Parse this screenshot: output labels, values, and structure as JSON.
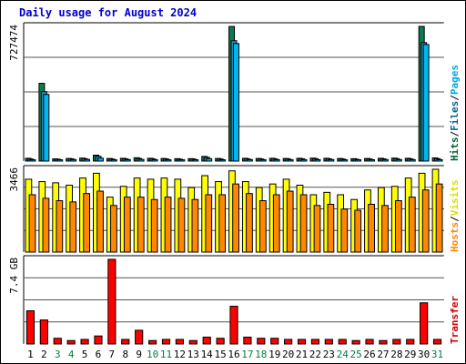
{
  "chart_data": {
    "type": "bar",
    "title": "Daily usage for August 2024",
    "categories": [
      "1",
      "2",
      "3",
      "4",
      "5",
      "6",
      "7",
      "8",
      "9",
      "10",
      "11",
      "12",
      "13",
      "14",
      "15",
      "16",
      "17",
      "18",
      "19",
      "20",
      "21",
      "22",
      "23",
      "24",
      "25",
      "26",
      "27",
      "28",
      "29",
      "30",
      "31"
    ],
    "weekend_days": [
      "3",
      "4",
      "10",
      "11",
      "17",
      "18",
      "24",
      "25",
      "31"
    ],
    "panels": [
      {
        "id": "top",
        "max_label": "727474",
        "max_value": 727474,
        "right_labels": [
          {
            "text": "Hits",
            "color": "#006633"
          },
          {
            "text": "/",
            "color": "#000000"
          },
          {
            "text": "Files",
            "color": "#006699"
          },
          {
            "text": "/",
            "color": "#000000"
          },
          {
            "text": "Pages",
            "color": "#00aadd"
          }
        ],
        "series": [
          {
            "name": "Hits",
            "color": "#0d7a52",
            "values": [
              15000,
              420000,
              12000,
              14000,
              16000,
              32000,
              14000,
              15000,
              18000,
              15000,
              14000,
              13000,
              13000,
              25000,
              14000,
              727000,
              15000,
              14000,
              15000,
              14000,
              15000,
              16000,
              15000,
              14000,
              13000,
              14000,
              15000,
              16000,
              15000,
              727474,
              17000
            ]
          },
          {
            "name": "Files",
            "color": "#2a8ec8",
            "values": [
              11000,
              375000,
              10000,
              12000,
              13000,
              26000,
              11000,
              12000,
              14000,
              12000,
              11000,
              10000,
              11000,
              20000,
              11000,
              650000,
              12000,
              11000,
              12000,
              11000,
              12000,
              13000,
              12000,
              11000,
              10000,
              11000,
              12000,
              13000,
              12000,
              640000,
              13000
            ]
          },
          {
            "name": "Pages",
            "color": "#00b7f0",
            "values": [
              7000,
              360000,
              7000,
              8000,
              9000,
              16000,
              7000,
              8000,
              9000,
              8000,
              7000,
              7000,
              7000,
              13000,
              7000,
              635000,
              8000,
              7000,
              8000,
              7000,
              8000,
              8000,
              8000,
              7000,
              7000,
              7000,
              8000,
              8000,
              8000,
              630000,
              8000
            ]
          }
        ]
      },
      {
        "id": "middle",
        "max_label": "3466",
        "max_value": 3466,
        "right_labels": [
          {
            "text": "Hosts",
            "color": "#ff8800"
          },
          {
            "text": "/",
            "color": "#000000"
          },
          {
            "text": "Visits",
            "color": "#dddd00"
          }
        ],
        "series": [
          {
            "name": "Visits",
            "color": "#ffff00",
            "values": [
              3050,
              2950,
              2900,
              2800,
              3100,
              3300,
              2300,
              2750,
              3100,
              3050,
              3100,
              3050,
              2700,
              3200,
              2950,
              3400,
              2950,
              2700,
              2850,
              3050,
              2800,
              2400,
              2500,
              2400,
              2200,
              2600,
              2700,
              2750,
              3100,
              3300,
              3466
            ]
          },
          {
            "name": "Hosts",
            "color": "#ff8800",
            "values": [
              2400,
              2250,
              2150,
              2100,
              2450,
              2550,
              1950,
              2300,
              2300,
              2200,
              2300,
              2250,
              2200,
              2400,
              2400,
              2850,
              2450,
              2150,
              2400,
              2550,
              2400,
              1950,
              2000,
              1800,
              1750,
              2000,
              1950,
              2150,
              2300,
              2600,
              2850
            ]
          }
        ]
      },
      {
        "id": "bottom",
        "max_label": "7.4 GB",
        "max_value": 7.4,
        "right_labels": [
          {
            "text": "Transfer",
            "color": "#cc0000"
          }
        ],
        "series": [
          {
            "name": "Transfer",
            "color": "#ff0000",
            "values": [
              2.9,
              2.1,
              0.5,
              0.3,
              0.4,
              0.7,
              7.4,
              0.4,
              1.2,
              0.3,
              0.4,
              0.4,
              0.3,
              0.6,
              0.5,
              3.3,
              0.6,
              0.5,
              0.5,
              0.4,
              0.4,
              0.4,
              0.4,
              0.4,
              0.3,
              0.4,
              0.3,
              0.4,
              0.4,
              3.6,
              0.4
            ]
          }
        ]
      }
    ]
  },
  "colors": {
    "title": "#0000cc",
    "weekday_label": "#000000",
    "weekend_label": "#008040",
    "frame_dark": "#000000",
    "frame_light": "#ffffff",
    "panel_bg": "#ffffff",
    "grid": "#555555"
  }
}
